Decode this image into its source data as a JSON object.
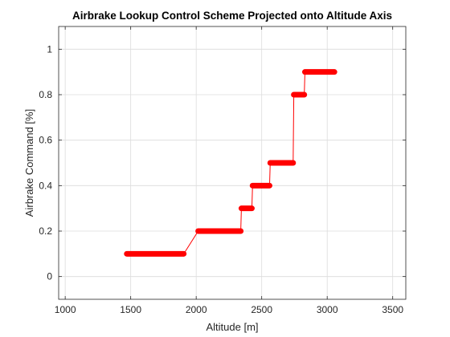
{
  "chart_data": {
    "type": "line",
    "title": "Airbrake Lookup Control Scheme Projected onto Altitude Axis",
    "xlabel": "Altitude [m]",
    "ylabel": "Airbrake Command [%]",
    "xlim": [
      950,
      3600
    ],
    "ylim": [
      -0.1,
      1.1
    ],
    "xticks": [
      1000,
      1500,
      2000,
      2500,
      3000,
      3500
    ],
    "yticks": [
      0,
      0.2,
      0.4,
      0.6,
      0.8,
      1
    ],
    "xtick_labels": [
      "1000",
      "1500",
      "2000",
      "2500",
      "3000",
      "3500"
    ],
    "ytick_labels": [
      "0",
      "0.2",
      "0.4",
      "0.6",
      "0.8",
      "1"
    ],
    "grid": true,
    "line_color": "#ff0000",
    "marker_color": "#ff0000",
    "series": [
      {
        "points": [
          [
            1470,
            0.1
          ],
          [
            1905,
            0.1
          ],
          [
            2015,
            0.2
          ],
          [
            2340,
            0.2
          ],
          [
            2345,
            0.3
          ],
          [
            2425,
            0.3
          ],
          [
            2430,
            0.4
          ],
          [
            2560,
            0.4
          ],
          [
            2565,
            0.5
          ],
          [
            2740,
            0.5
          ],
          [
            2745,
            0.8
          ],
          [
            2825,
            0.8
          ],
          [
            2830,
            0.9
          ],
          [
            3055,
            0.9
          ]
        ],
        "marker_segments": [
          [
            1470,
            1905,
            0.1
          ],
          [
            2015,
            2340,
            0.2
          ],
          [
            2345,
            2425,
            0.3
          ],
          [
            2430,
            2560,
            0.4
          ],
          [
            2565,
            2740,
            0.5
          ],
          [
            2745,
            2825,
            0.8
          ],
          [
            2830,
            3055,
            0.9
          ]
        ]
      }
    ]
  }
}
